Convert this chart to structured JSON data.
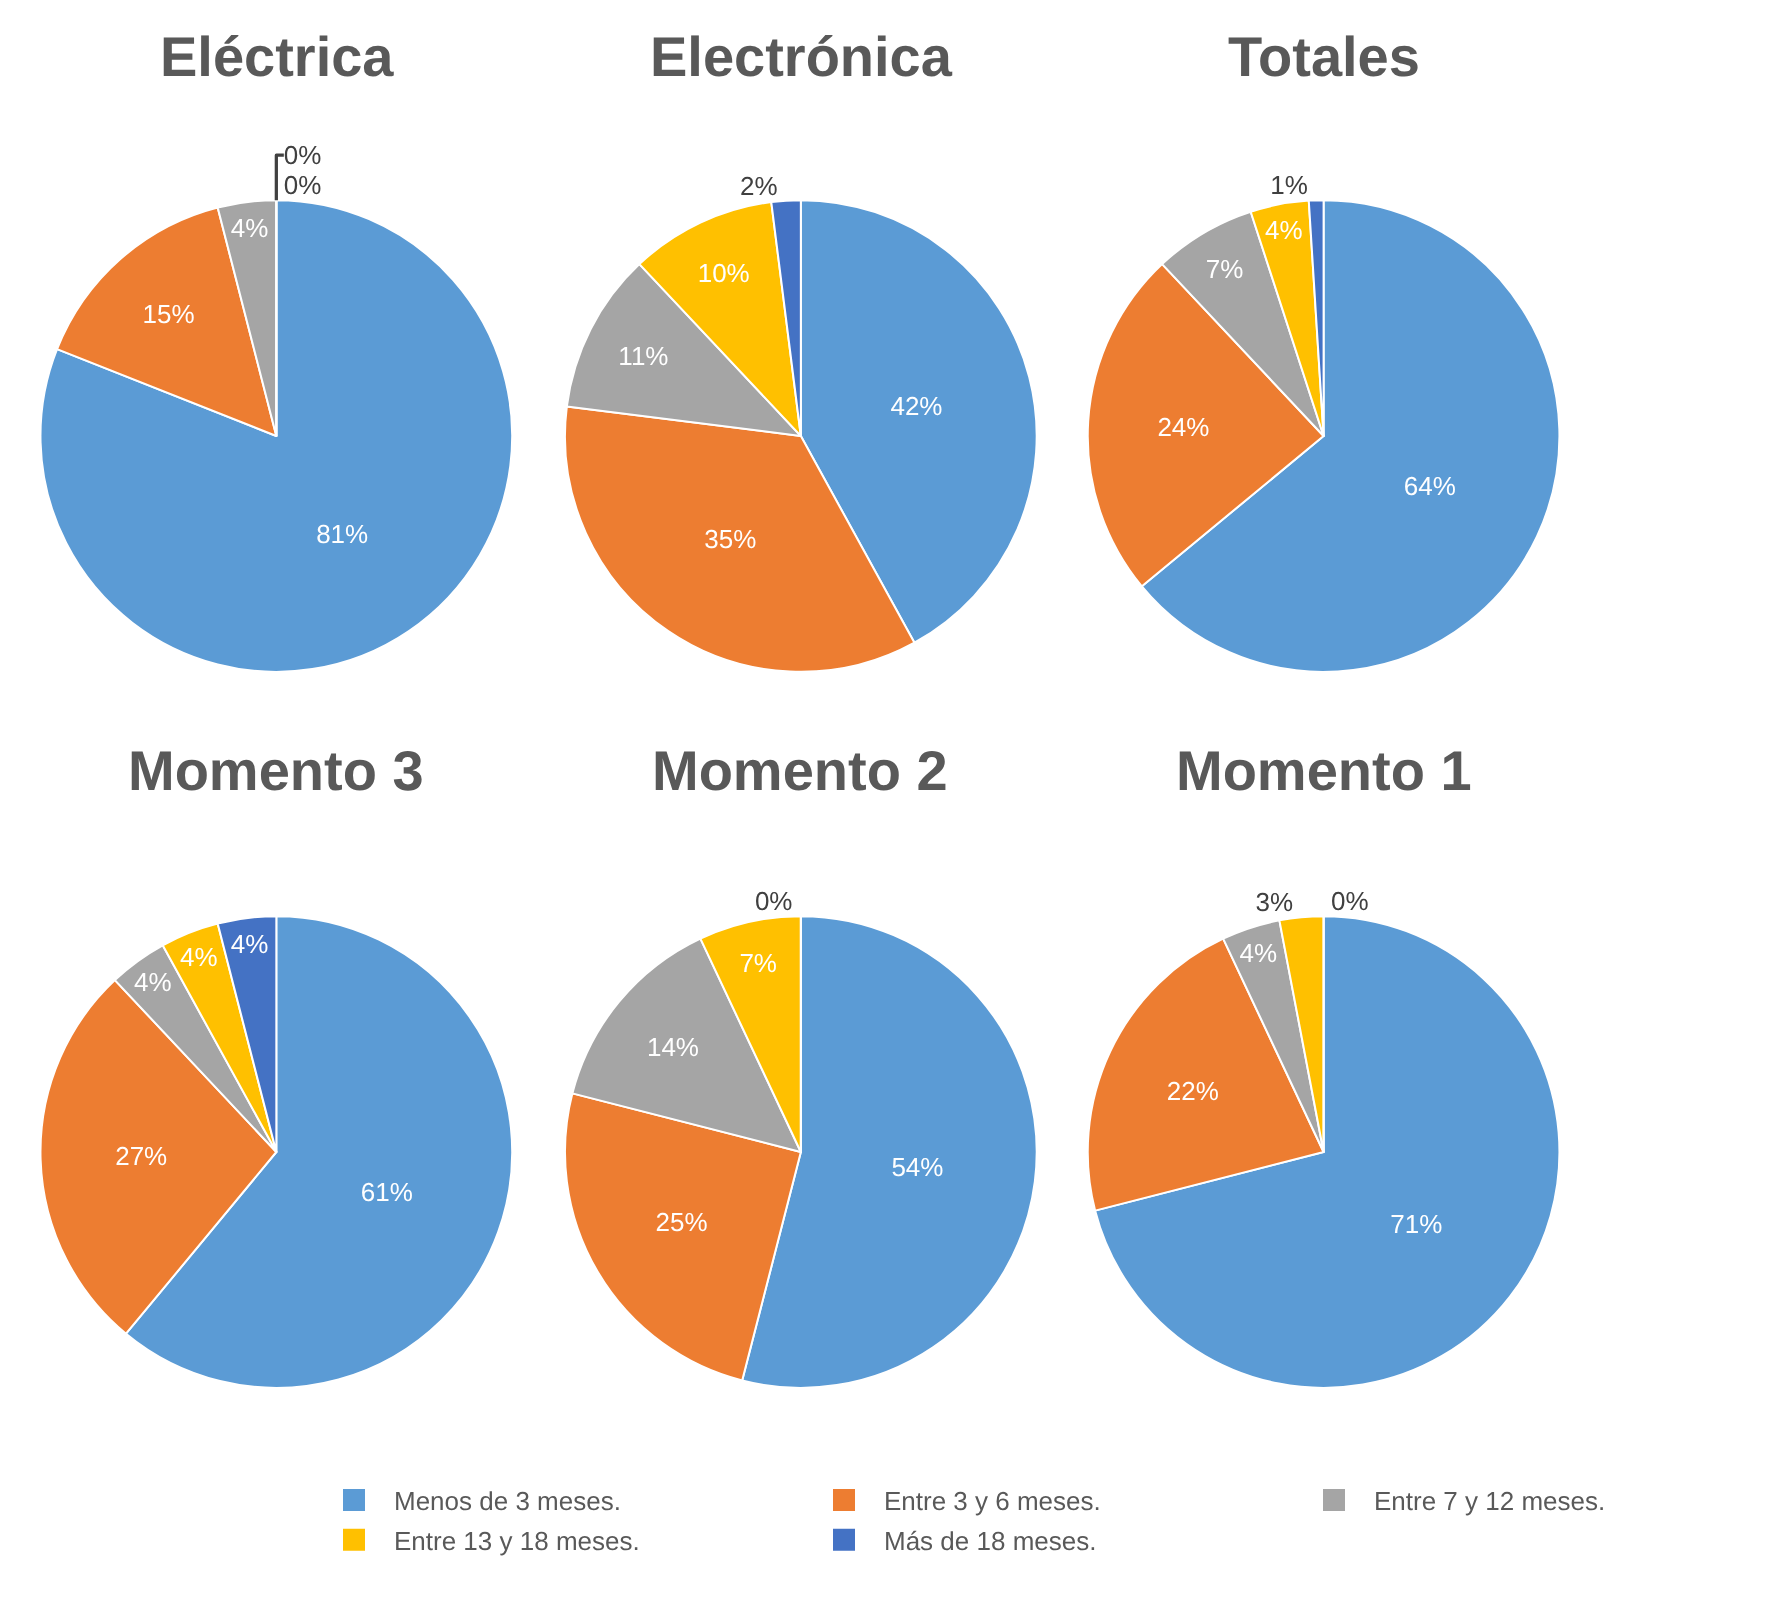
{
  "chart_data": [
    {
      "type": "pie",
      "title": "Eléctrica",
      "categories": [
        "Menos de 3 meses.",
        "Entre 3 y 6 meses.",
        "Entre 7 y 12 meses.",
        "Entre 13 y 18 meses.",
        "Más de 18 meses."
      ],
      "values": [
        81,
        15,
        4,
        0,
        0
      ],
      "value_labels": [
        "81%",
        "15%",
        "4%",
        "0%",
        "0%"
      ],
      "colors": [
        "#5b9bd5",
        "#ed7d31",
        "#a5a5a5",
        "#ffc000",
        "#4472c4"
      ],
      "legend": "bottom"
    },
    {
      "type": "pie",
      "title": "Electrónica",
      "categories": [
        null,
        null,
        null,
        null,
        null
      ],
      "values": [
        42,
        35,
        11,
        10,
        2
      ],
      "value_labels": [
        "42%",
        "35%",
        "11%",
        "10%",
        "2%"
      ],
      "colors": [
        "#5b9bd5",
        "#ed7d31",
        "#a5a5a5",
        "#ffc000",
        "#4472c4"
      ]
    },
    {
      "type": "pie",
      "title": "Totales",
      "categories": [
        null,
        null,
        null,
        null,
        null
      ],
      "values": [
        64,
        24,
        7,
        4,
        1
      ],
      "value_labels": [
        "64%",
        "24%",
        "7%",
        "4%",
        "1%"
      ],
      "colors": [
        "#5b9bd5",
        "#ed7d31",
        "#a5a5a5",
        "#ffc000",
        "#4472c4"
      ]
    },
    {
      "type": "pie",
      "title": "Momento 3",
      "categories": [
        null,
        null,
        null,
        null,
        null
      ],
      "values": [
        61,
        27,
        4,
        4,
        4
      ],
      "value_labels": [
        "61%",
        "27%",
        "4%",
        "4%",
        "4%"
      ],
      "colors": [
        "#5b9bd5",
        "#ed7d31",
        "#a5a5a5",
        "#ffc000",
        "#4472c4"
      ]
    },
    {
      "type": "pie",
      "title": "Momento 2",
      "categories": [
        null,
        null,
        null,
        null,
        null
      ],
      "values": [
        54,
        25,
        14,
        7,
        0
      ],
      "value_labels": [
        "54%",
        "25%",
        "14%",
        "7%",
        "0%"
      ],
      "colors": [
        "#5b9bd5",
        "#ed7d31",
        "#a5a5a5",
        "#ffc000",
        "#4472c4"
      ]
    },
    {
      "type": "pie",
      "title": "Momento 1",
      "categories": [
        null,
        null,
        null,
        null,
        null
      ],
      "values": [
        71,
        22,
        4,
        3,
        0
      ],
      "value_labels": [
        "71%",
        "22%",
        "4%",
        "3%",
        "0%"
      ],
      "colors": [
        "#5b9bd5",
        "#ed7d31",
        "#a5a5a5",
        "#ffc000",
        "#4472c4"
      ]
    }
  ]
}
